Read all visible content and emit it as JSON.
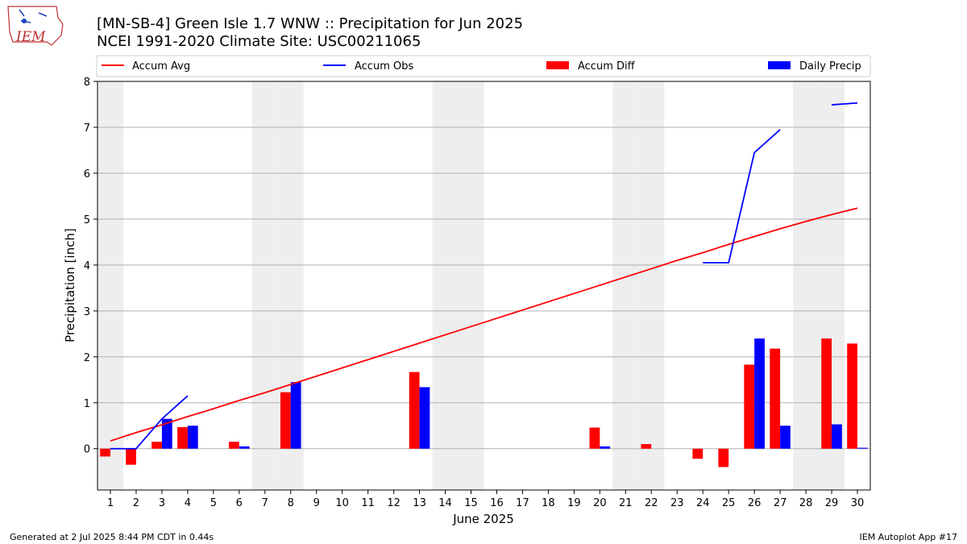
{
  "header": {
    "logo_text": "IEM",
    "title_line1": "[MN-SB-4] Green Isle 1.7 WNW :: Precipitation for Jun 2025",
    "title_line2": "NCEI 1991-2020 Climate Site: USC00211065"
  },
  "footer": {
    "left": "Generated at 2 Jul 2025 8:44 PM CDT in 0.44s",
    "right": "IEM Autoplot App #17"
  },
  "colors": {
    "avg": "#ff0000",
    "obs": "#0000ff",
    "diff": "#ff0000",
    "daily": "#0000ff",
    "weekend_band": "#eeeeee",
    "grid": "#b0b0b0"
  },
  "chart_data": {
    "type": "bar",
    "xlabel": "June 2025",
    "ylabel": "Precipitation [inch]",
    "xlim": [
      0.5,
      30.5
    ],
    "ylim": [
      -0.9,
      8
    ],
    "grid": true,
    "legend_position": "top",
    "x": [
      1,
      2,
      3,
      4,
      5,
      6,
      7,
      8,
      9,
      10,
      11,
      12,
      13,
      14,
      15,
      16,
      17,
      18,
      19,
      20,
      21,
      22,
      23,
      24,
      25,
      26,
      27,
      28,
      29,
      30
    ],
    "y_ticks": [
      0,
      1,
      2,
      3,
      4,
      5,
      6,
      7,
      8
    ],
    "weekend_days": [
      1,
      7,
      8,
      14,
      15,
      21,
      22,
      28,
      29
    ],
    "series": [
      {
        "name": "Accum Avg",
        "kind": "line",
        "values": [
          0.17,
          0.35,
          0.52,
          0.7,
          0.87,
          1.05,
          1.22,
          1.4,
          1.58,
          1.76,
          1.94,
          2.12,
          2.3,
          2.48,
          2.66,
          2.84,
          3.02,
          3.2,
          3.38,
          3.56,
          3.74,
          3.92,
          4.1,
          4.27,
          4.45,
          4.62,
          4.79,
          4.95,
          5.1,
          5.24
        ]
      },
      {
        "name": "Accum Obs",
        "kind": "line",
        "values": [
          0.0,
          0.0,
          0.65,
          1.15,
          null,
          null,
          null,
          null,
          null,
          null,
          null,
          null,
          null,
          null,
          null,
          null,
          null,
          null,
          null,
          null,
          null,
          null,
          null,
          4.05,
          4.05,
          6.45,
          6.95,
          null,
          7.49,
          7.53
        ]
      },
      {
        "name": "Accum Diff",
        "kind": "bar",
        "values": [
          -0.17,
          -0.35,
          0.15,
          0.47,
          0,
          0.15,
          0,
          1.23,
          0,
          0,
          0,
          0,
          1.67,
          0,
          0,
          0,
          0,
          0,
          0,
          0.46,
          0,
          0.1,
          0,
          -0.22,
          -0.4,
          1.83,
          2.18,
          0,
          2.4,
          2.29
        ]
      },
      {
        "name": "Daily Precip",
        "kind": "bar",
        "values": [
          0,
          0,
          0.65,
          0.5,
          0,
          0.05,
          0,
          1.45,
          0,
          0,
          0,
          0,
          1.34,
          0,
          0,
          0,
          0,
          0,
          0,
          0.05,
          0,
          0,
          0,
          0,
          0,
          2.4,
          0.5,
          0,
          0.53,
          0.02
        ]
      }
    ]
  }
}
